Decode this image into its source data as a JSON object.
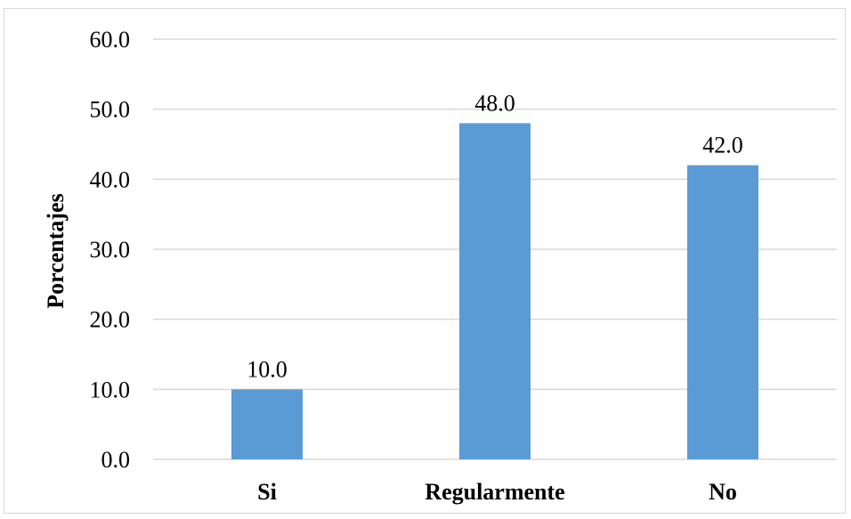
{
  "chart_data": {
    "type": "bar",
    "title": "",
    "xlabel": "",
    "ylabel": "Porcentajes",
    "categories": [
      "Si",
      "Regularmente",
      "No"
    ],
    "values": [
      10.0,
      48.0,
      42.0
    ],
    "value_labels": [
      "10.0",
      "48.0",
      "42.0"
    ],
    "ylim": [
      0,
      60
    ],
    "yticks": [
      0,
      10,
      20,
      30,
      40,
      50,
      60
    ],
    "ytick_labels": [
      "0.0",
      "10.0",
      "20.0",
      "30.0",
      "40.0",
      "50.0",
      "60.0"
    ],
    "grid": true,
    "legend": "none",
    "bar_color": "#5b9bd5",
    "grid_color": "#d9d9d9"
  }
}
